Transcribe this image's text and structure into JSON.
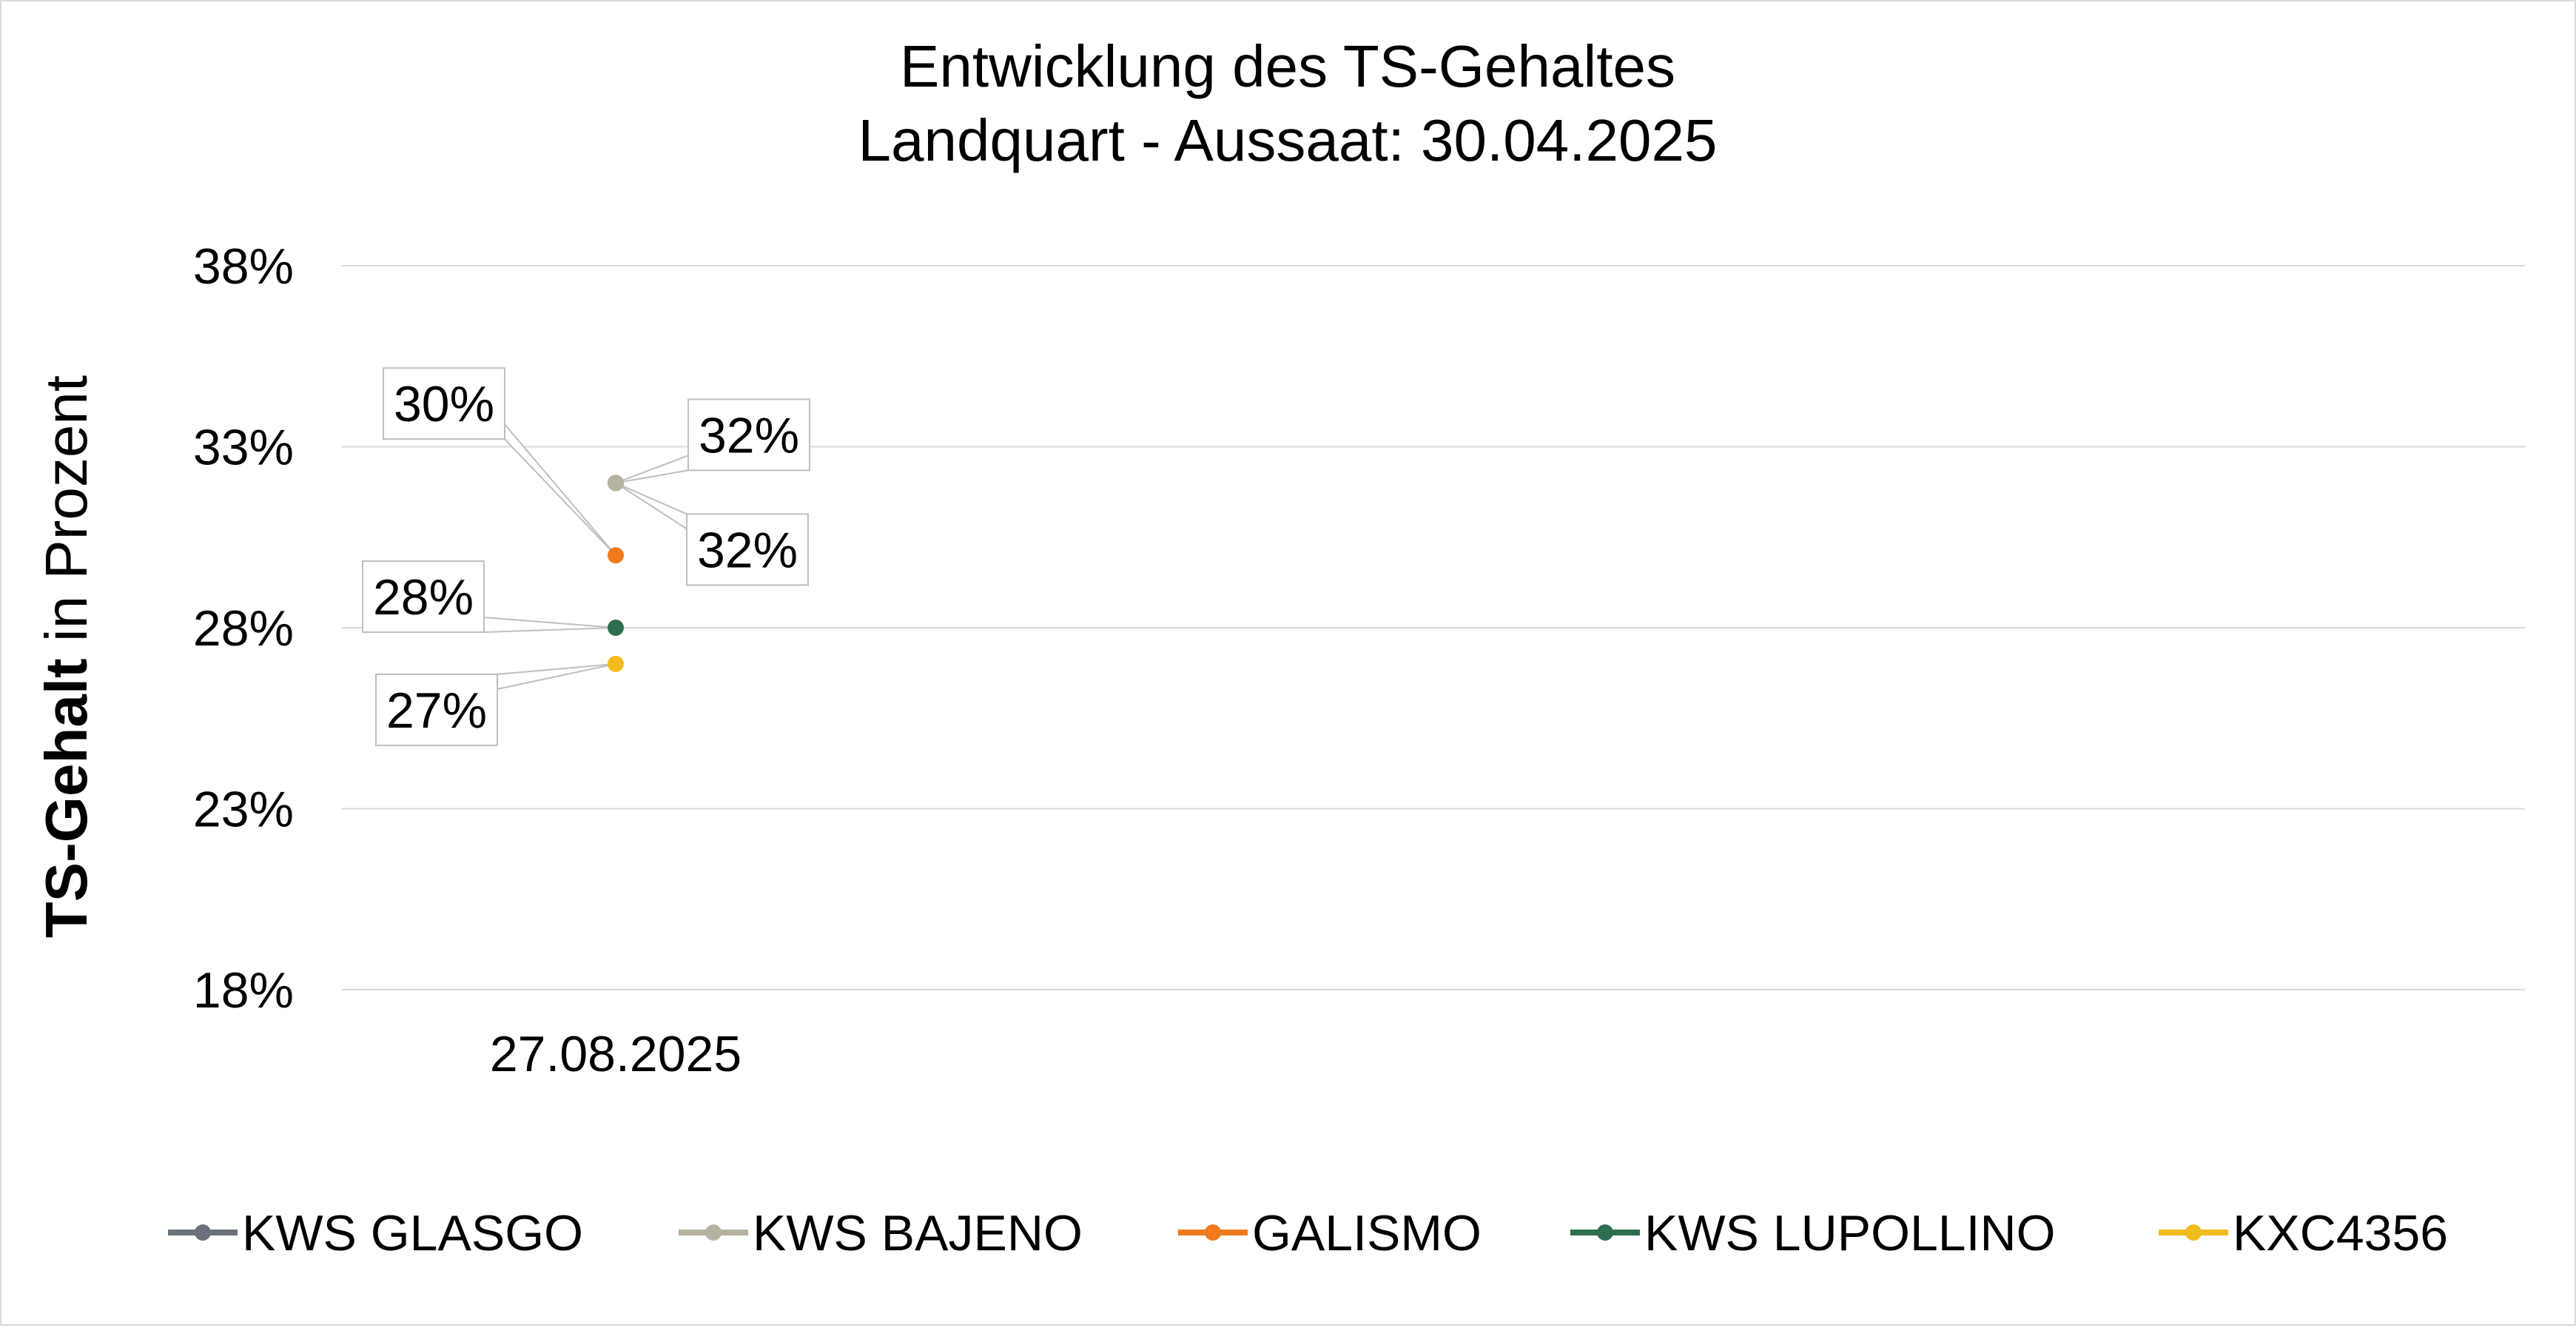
{
  "chart_data": {
    "type": "line",
    "title": [
      "Entwicklung des TS-Gehaltes",
      "Landquart - Aussaat: 30.04.2025"
    ],
    "ylabel_bold": "TS-Gehalt",
    "ylabel_rest": " in Prozent",
    "xlabel": "",
    "categories": [
      "27.08.2025"
    ],
    "y_ticks": [
      "18%",
      "23%",
      "28%",
      "33%",
      "38%"
    ],
    "ylim": [
      18,
      38
    ],
    "y_unit": "percent",
    "grid": "horizontal",
    "legend_position": "bottom",
    "series": [
      {
        "name": "KWS GLASGO",
        "color": "#6b7177",
        "values": [
          32
        ],
        "label": "32%"
      },
      {
        "name": "KWS BAJENO",
        "color": "#b5b3a0",
        "values": [
          32
        ],
        "label": "32%"
      },
      {
        "name": "GALISMO",
        "color": "#f07a1c",
        "values": [
          30
        ],
        "label": "30%"
      },
      {
        "name": "KWS LUPOLLINO",
        "color": "#2e6e4e",
        "values": [
          28
        ],
        "label": "28%"
      },
      {
        "name": "KXC4356",
        "color": "#f2bb1e",
        "values": [
          27
        ],
        "label": "27%"
      }
    ]
  }
}
